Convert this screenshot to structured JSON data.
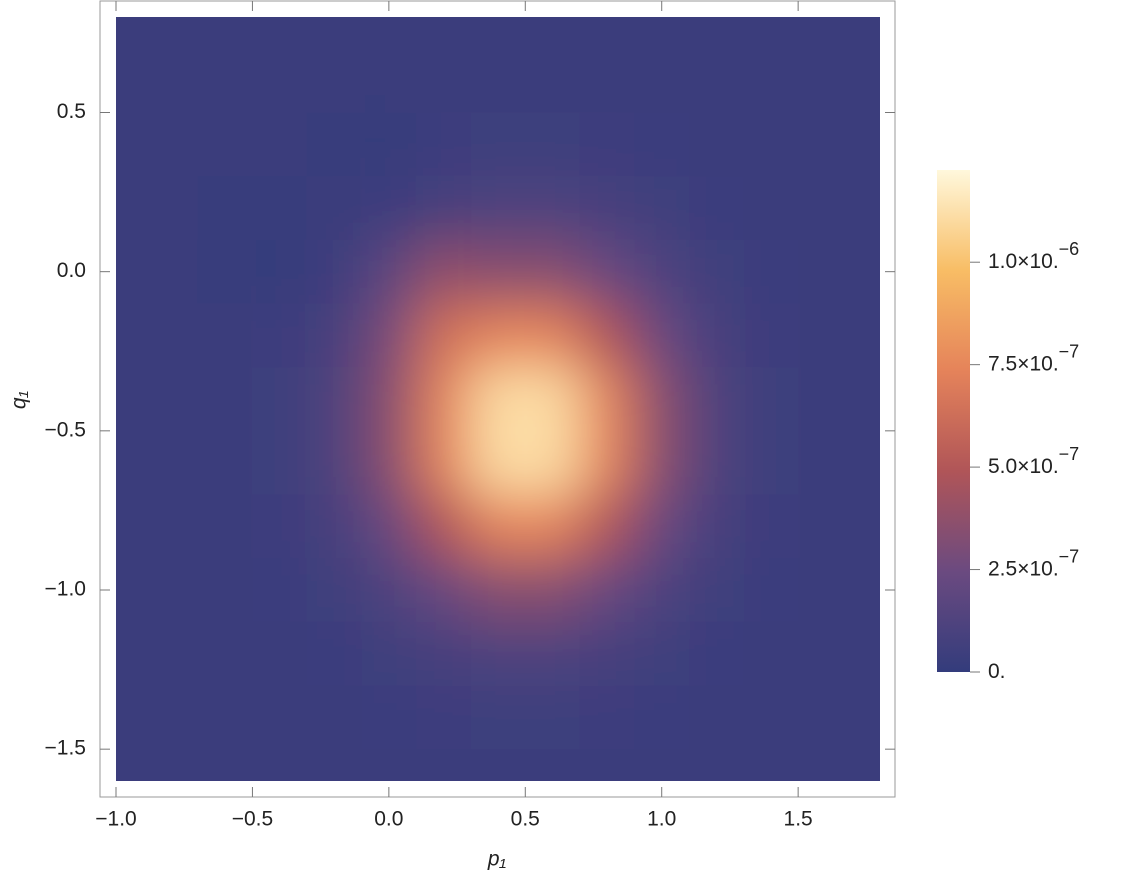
{
  "chart_data": {
    "type": "heatmap",
    "xlabel": "p₁",
    "ylabel": "q₁",
    "x": [
      -1,
      -0.8,
      -0.6,
      -0.4,
      -0.2,
      0,
      0.2,
      0.4,
      0.6,
      0.8,
      1,
      1.2,
      1.4,
      1.6,
      1.8
    ],
    "y": [
      0.8,
      0.6,
      0.4,
      0.2,
      0,
      -0.2,
      -0.4,
      -0.6,
      -0.8,
      -1,
      -1.2,
      -1.4,
      -1.6
    ],
    "values": [
      [
        3e-08,
        3e-08,
        3e-08,
        3e-08,
        3e-08,
        3e-08,
        3e-08,
        3e-08,
        3e-08,
        3e-08,
        3e-08,
        3e-08,
        3e-08,
        3e-08,
        3e-08
      ],
      [
        3e-08,
        3e-08,
        3e-08,
        3e-08,
        3e-08,
        3e-08,
        3e-08,
        3e-08,
        3e-08,
        3e-08,
        3e-08,
        3e-08,
        3e-08,
        3e-08,
        3e-08
      ],
      [
        3e-08,
        3e-08,
        3e-08,
        3e-08,
        2e-08,
        5e-09,
        4e-08,
        4.6e-08,
        4.6e-08,
        4e-08,
        3.4e-08,
        3e-08,
        3e-08,
        3e-08,
        3e-08
      ],
      [
        3e-08,
        3e-08,
        2.5e-08,
        2e-08,
        3e-08,
        4e-08,
        8.7e-08,
        1.2e-07,
        1.2e-07,
        8.7e-08,
        5.4e-08,
        3.7e-08,
        3e-08,
        3e-08,
        3e-08
      ],
      [
        3e-08,
        3e-08,
        2.5e-08,
        5e-09,
        4e-08,
        1.8e-07,
        3.8e-07,
        3.4e-07,
        3.4e-07,
        2.3e-07,
        1.2e-07,
        5.4e-08,
        3.6e-08,
        3e-08,
        3e-08
      ],
      [
        3e-08,
        3e-08,
        3e-08,
        4e-08,
        8.7e-08,
        2.9e-07,
        6.4e-07,
        7.4e-07,
        7.4e-07,
        4.9e-07,
        2.3e-07,
        8.7e-08,
        4e-08,
        3e-08,
        3e-08
      ],
      [
        3e-08,
        3e-08,
        3e-08,
        4.6e-08,
        1.2e-07,
        3.4e-07,
        7.4e-07,
        1.11e-06,
        1.11e-06,
        7.4e-07,
        3.4e-07,
        1.2e-07,
        4.6e-08,
        3e-08,
        3e-08
      ],
      [
        3e-08,
        3e-08,
        3e-08,
        4.6e-08,
        1.2e-07,
        3.4e-07,
        7.4e-07,
        1.11e-06,
        1.11e-06,
        7.4e-07,
        3.4e-07,
        1.2e-07,
        4.6e-08,
        3e-08,
        3e-08
      ],
      [
        3e-08,
        3e-08,
        3e-08,
        4e-08,
        8.7e-08,
        2.3e-07,
        4.9e-07,
        7.4e-07,
        7.4e-07,
        4.9e-07,
        2.3e-07,
        8.7e-08,
        4e-08,
        3e-08,
        3e-08
      ],
      [
        3e-08,
        3e-08,
        3e-08,
        3.6e-08,
        5.4e-08,
        1.2e-07,
        2.3e-07,
        3.4e-07,
        3.4e-07,
        2.3e-07,
        1.2e-07,
        5.4e-08,
        3.6e-08,
        3e-08,
        3e-08
      ],
      [
        3e-08,
        3e-08,
        3e-08,
        3e-08,
        3.7e-08,
        5.4e-08,
        8.7e-08,
        1.2e-07,
        1.2e-07,
        8.7e-08,
        5.4e-08,
        3.7e-08,
        3e-08,
        3e-08,
        3e-08
      ],
      [
        3e-08,
        3e-08,
        3e-08,
        3e-08,
        3e-08,
        3.4e-08,
        4e-08,
        4.6e-08,
        4.6e-08,
        4e-08,
        3.4e-08,
        3e-08,
        3e-08,
        3e-08,
        3e-08
      ],
      [
        3e-08,
        3e-08,
        3e-08,
        3e-08,
        3e-08,
        3e-08,
        3e-08,
        3e-08,
        3e-08,
        3e-08,
        3e-08,
        3e-08,
        3e-08,
        3e-08,
        3e-08
      ]
    ],
    "xlim": [
      -1,
      1.8
    ],
    "ylim": [
      -1.6,
      0.8
    ],
    "xticks": [
      {
        "value": -1,
        "label": "−1.0"
      },
      {
        "value": -0.5,
        "label": "−0.5"
      },
      {
        "value": 0,
        "label": "0.0"
      },
      0.5,
      {
        "value": 1,
        "label": "1.0"
      },
      1.5
    ],
    "yticks": [
      0.5,
      {
        "value": 0,
        "label": "0.0"
      },
      {
        "value": -0.5,
        "label": "−0.5"
      },
      {
        "value": -1,
        "label": "−1.0"
      },
      {
        "value": -1.5,
        "label": "−1.5"
      }
    ],
    "zlim": [
      0,
      1.225e-06
    ],
    "zticks": [
      {
        "value": 0,
        "label": "0."
      },
      {
        "value": 2.5e-07,
        "label": "2.5×10.",
        "exponent": "−7"
      },
      {
        "value": 5e-07,
        "label": "5.0×10.",
        "exponent": "−7"
      },
      {
        "value": 7.5e-07,
        "label": "7.5×10.",
        "exponent": "−7"
      },
      {
        "value": 1e-06,
        "label": "1.0×10.",
        "exponent": "−6"
      }
    ],
    "colors": [
      "#333c7c",
      "#6b4a80",
      "#b05558",
      "#e5835a",
      "#f8bd65",
      "#fff8dc"
    ]
  }
}
